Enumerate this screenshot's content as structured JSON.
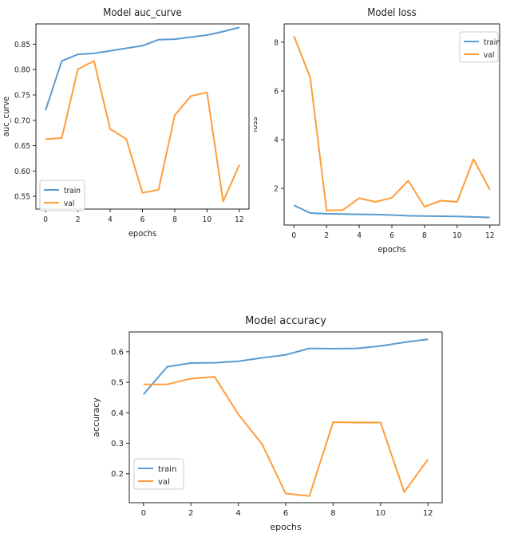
{
  "colors": {
    "train": "#5b9bd0",
    "val": "#ff9d3a"
  },
  "chart_data": [
    {
      "id": "auc",
      "type": "line",
      "title": "Model auc_curve",
      "xlabel": "epochs",
      "ylabel": "auc_curve",
      "xlim": [
        -0.6,
        12.6
      ],
      "ylim": [
        0.525,
        0.89
      ],
      "xticks": [
        0,
        2,
        4,
        6,
        8,
        10,
        12
      ],
      "yticks": [
        0.55,
        0.6,
        0.65,
        0.7,
        0.75,
        0.8,
        0.85
      ],
      "legend": "lower-left",
      "x": [
        0,
        1,
        2,
        3,
        4,
        5,
        6,
        7,
        8,
        9,
        10,
        11,
        12
      ],
      "series": [
        {
          "name": "train",
          "values": [
            0.72,
            0.817,
            0.83,
            0.832,
            0.837,
            0.842,
            0.847,
            0.859,
            0.86,
            0.864,
            0.868,
            0.875,
            0.883
          ]
        },
        {
          "name": "val",
          "values": [
            0.663,
            0.665,
            0.801,
            0.817,
            0.683,
            0.663,
            0.557,
            0.563,
            0.71,
            0.748,
            0.755,
            0.54,
            0.612
          ]
        }
      ]
    },
    {
      "id": "loss",
      "type": "line",
      "title": "Model loss",
      "xlabel": "epochs",
      "ylabel": "loss",
      "xlim": [
        -0.6,
        12.6
      ],
      "ylim": [
        0.5,
        8.75
      ],
      "xticks": [
        0,
        2,
        4,
        6,
        8,
        10,
        12
      ],
      "yticks": [
        2,
        4,
        6,
        8
      ],
      "legend": "upper-right",
      "x": [
        0,
        1,
        2,
        3,
        4,
        5,
        6,
        7,
        8,
        9,
        10,
        11,
        12
      ],
      "series": [
        {
          "name": "train",
          "values": [
            1.31,
            0.99,
            0.96,
            0.95,
            0.94,
            0.93,
            0.91,
            0.88,
            0.87,
            0.86,
            0.85,
            0.83,
            0.81
          ]
        },
        {
          "name": "val",
          "values": [
            8.25,
            6.55,
            1.1,
            1.12,
            1.6,
            1.45,
            1.62,
            2.32,
            1.25,
            1.5,
            1.45,
            3.2,
            1.95
          ]
        }
      ]
    },
    {
      "id": "accuracy",
      "type": "line",
      "title": "Model accuracy",
      "xlabel": "epochs",
      "ylabel": "accuracy",
      "xlim": [
        -0.6,
        12.6
      ],
      "ylim": [
        0.105,
        0.665
      ],
      "xticks": [
        0,
        2,
        4,
        6,
        8,
        10,
        12
      ],
      "yticks": [
        0.2,
        0.3,
        0.4,
        0.5,
        0.6
      ],
      "legend": "lower-left",
      "x": [
        0,
        1,
        2,
        3,
        4,
        5,
        6,
        7,
        8,
        9,
        10,
        11,
        12
      ],
      "series": [
        {
          "name": "train",
          "values": [
            0.46,
            0.551,
            0.563,
            0.564,
            0.569,
            0.58,
            0.59,
            0.611,
            0.61,
            0.611,
            0.619,
            0.631,
            0.641
          ]
        },
        {
          "name": "val",
          "values": [
            0.493,
            0.493,
            0.512,
            0.518,
            0.395,
            0.297,
            0.135,
            0.127,
            0.369,
            0.368,
            0.368,
            0.14,
            0.247
          ]
        }
      ]
    }
  ]
}
